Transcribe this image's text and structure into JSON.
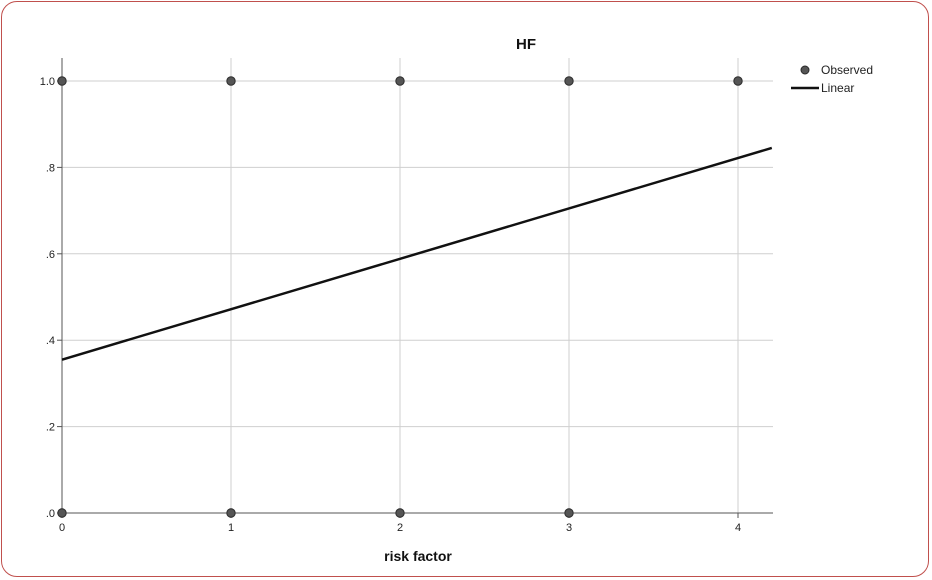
{
  "chart_data": {
    "type": "scatter",
    "title": "HF",
    "xlabel": "risk factor",
    "ylabel": "",
    "xlim": [
      0,
      4.2
    ],
    "ylim": [
      0,
      1.05
    ],
    "x_ticks": [
      0,
      1,
      2,
      3,
      4
    ],
    "x_tick_labels": [
      "0",
      "1",
      "2",
      "3",
      "4"
    ],
    "y_ticks": [
      0,
      0.2,
      0.4,
      0.6,
      0.8,
      1.0
    ],
    "y_tick_labels": [
      ".0",
      ".2",
      ".4",
      ".6",
      ".8",
      "1.0"
    ],
    "grid": true,
    "legend_position": "top-right",
    "series": [
      {
        "name": "Observed",
        "type": "scatter",
        "color": "#555555",
        "points": [
          {
            "x": 0,
            "y": 1
          },
          {
            "x": 1,
            "y": 1
          },
          {
            "x": 2,
            "y": 1
          },
          {
            "x": 3,
            "y": 1
          },
          {
            "x": 4,
            "y": 1
          },
          {
            "x": 0,
            "y": 0
          },
          {
            "x": 1,
            "y": 0
          },
          {
            "x": 2,
            "y": 0
          },
          {
            "x": 3,
            "y": 0
          }
        ]
      },
      {
        "name": "Linear",
        "type": "line",
        "color": "#111111",
        "points": [
          {
            "x": 0,
            "y": 0.355
          },
          {
            "x": 4.2,
            "y": 0.845
          }
        ]
      }
    ]
  }
}
